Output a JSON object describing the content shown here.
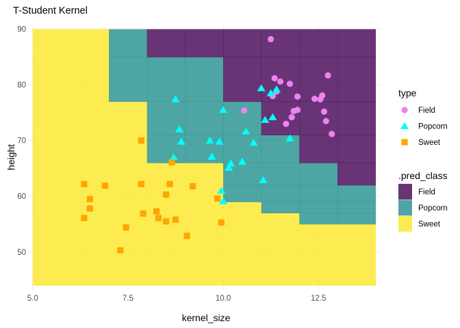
{
  "chart_data": {
    "type": "scatter",
    "title": "T-Student Kernel",
    "xlabel": "kernel_size",
    "ylabel": "height",
    "xlim": [
      4.95,
      14.15
    ],
    "ylim": [
      43.1,
      90.7
    ],
    "x_ticks": [
      5,
      7.5,
      10,
      12.5
    ],
    "x_tick_labels": [
      "5.0",
      "7.5",
      "10.0",
      "12.5"
    ],
    "y_ticks": [
      50,
      60,
      70,
      80,
      90
    ],
    "y_tick_labels": [
      "50",
      "60",
      "70",
      "80",
      "90"
    ],
    "grid": true,
    "legend_position": "right",
    "colors": {
      "point_field": "#EE82EE",
      "point_popcorn": "#00FFFF",
      "point_sweet": "#FFA500",
      "region_field": "#440154",
      "region_popcorn": "#21908C",
      "region_sweet": "#FDE725",
      "grid_major": "#ebebeb",
      "grid_minor": "#f5f5f5"
    },
    "legend_type": {
      "title": "type",
      "entries": [
        {
          "label": "Field",
          "shape": "circle",
          "color": "#EE82EE"
        },
        {
          "label": "Popcorn",
          "shape": "triangle",
          "color": "#00FFFF"
        },
        {
          "label": "Sweet",
          "shape": "square",
          "color": "#FFA500"
        }
      ]
    },
    "legend_pred": {
      "title": ".pred_class",
      "entries": [
        {
          "label": "Field",
          "color": "#440154"
        },
        {
          "label": "Popcorn",
          "color": "#21908C"
        },
        {
          "label": "Sweet",
          "color": "#FDE725"
        }
      ]
    },
    "regions": {
      "x_breaks": [
        5.0,
        7.0,
        8.0,
        9.0,
        10.0,
        11.0,
        12.0,
        13.0,
        14.0
      ],
      "y_breaks": [
        44,
        53,
        55,
        57,
        59,
        62,
        66,
        71,
        77,
        85,
        90
      ],
      "columns": [
        [
          "Sweet",
          "Sweet",
          "Sweet",
          "Sweet",
          "Sweet",
          "Sweet",
          "Sweet",
          "Sweet",
          "Sweet",
          "Sweet"
        ],
        [
          "Sweet",
          "Sweet",
          "Sweet",
          "Sweet",
          "Sweet",
          "Sweet",
          "Sweet",
          "Sweet",
          "Popcorn",
          "Popcorn"
        ],
        [
          "Sweet",
          "Sweet",
          "Sweet",
          "Sweet",
          "Sweet",
          "Sweet",
          "Popcorn",
          "Popcorn",
          "Popcorn",
          "Field"
        ],
        [
          "Sweet",
          "Sweet",
          "Sweet",
          "Sweet",
          "Sweet",
          "Sweet",
          "Popcorn",
          "Popcorn",
          "Popcorn",
          "Field"
        ],
        [
          "Sweet",
          "Sweet",
          "Sweet",
          "Sweet",
          "Popcorn",
          "Popcorn",
          "Popcorn",
          "Popcorn",
          "Field",
          "Field"
        ],
        [
          "Sweet",
          "Sweet",
          "Sweet",
          "Popcorn",
          "Popcorn",
          "Popcorn",
          "Popcorn",
          "Field",
          "Field",
          "Field"
        ],
        [
          "Sweet",
          "Sweet",
          "Popcorn",
          "Popcorn",
          "Popcorn",
          "Popcorn",
          "Field",
          "Field",
          "Field",
          "Field"
        ],
        [
          "Sweet",
          "Sweet",
          "Popcorn",
          "Popcorn",
          "Popcorn",
          "Field",
          "Field",
          "Field",
          "Field",
          "Field"
        ],
        [
          "Sweet",
          "Popcorn",
          "Popcorn",
          "Popcorn",
          "Field",
          "Field",
          "Field",
          "Field",
          "Field",
          "Field"
        ]
      ]
    },
    "series": [
      {
        "name": "Field",
        "shape": "circle",
        "color": "#EE82EE",
        "points": [
          [
            11.25,
            88.2
          ],
          [
            11.35,
            81.2
          ],
          [
            11.5,
            80.6
          ],
          [
            11.75,
            80.2
          ],
          [
            11.95,
            77.9
          ],
          [
            11.4,
            78.8
          ],
          [
            11.3,
            78.0
          ],
          [
            12.75,
            81.7
          ],
          [
            12.6,
            78.1
          ],
          [
            12.4,
            77.5
          ],
          [
            12.55,
            77.4
          ],
          [
            11.85,
            75.3
          ],
          [
            11.95,
            75.5
          ],
          [
            12.65,
            75.2
          ],
          [
            12.7,
            73.5
          ],
          [
            11.8,
            74.2
          ],
          [
            11.65,
            73.0
          ],
          [
            12.85,
            71.2
          ],
          [
            10.55,
            75.4
          ]
        ]
      },
      {
        "name": "Popcorn",
        "shape": "triangle",
        "color": "#00FFFF",
        "points": [
          [
            8.75,
            77.4
          ],
          [
            8.85,
            72.0
          ],
          [
            8.9,
            69.8
          ],
          [
            9.65,
            70.0
          ],
          [
            9.9,
            69.8
          ],
          [
            10.0,
            75.5
          ],
          [
            11.0,
            79.4
          ],
          [
            11.25,
            78.5
          ],
          [
            11.4,
            79.2
          ],
          [
            11.1,
            73.7
          ],
          [
            11.3,
            74.2
          ],
          [
            10.6,
            71.6
          ],
          [
            10.8,
            69.6
          ],
          [
            11.75,
            70.4
          ],
          [
            9.7,
            67.1
          ],
          [
            8.7,
            67.0
          ],
          [
            10.2,
            65.9
          ],
          [
            10.5,
            66.2
          ],
          [
            10.15,
            65.1
          ],
          [
            11.05,
            62.9
          ],
          [
            9.95,
            61.0
          ],
          [
            10.0,
            59.1
          ]
        ]
      },
      {
        "name": "Sweet",
        "shape": "square",
        "color": "#FFA500",
        "points": [
          [
            7.85,
            70.0
          ],
          [
            8.65,
            66.1
          ],
          [
            6.35,
            62.2
          ],
          [
            6.9,
            61.9
          ],
          [
            7.85,
            62.2
          ],
          [
            8.6,
            62.2
          ],
          [
            9.2,
            61.8
          ],
          [
            6.5,
            59.5
          ],
          [
            6.5,
            57.8
          ],
          [
            6.35,
            56.1
          ],
          [
            7.45,
            54.4
          ],
          [
            7.9,
            56.9
          ],
          [
            8.25,
            57.3
          ],
          [
            8.3,
            56.1
          ],
          [
            8.5,
            60.3
          ],
          [
            8.5,
            55.5
          ],
          [
            8.75,
            55.8
          ],
          [
            9.05,
            52.9
          ],
          [
            9.85,
            59.6
          ],
          [
            9.95,
            55.3
          ],
          [
            7.3,
            50.3
          ]
        ]
      }
    ]
  }
}
